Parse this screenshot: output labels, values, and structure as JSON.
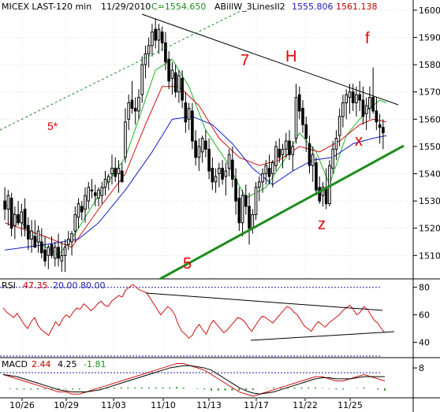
{
  "chart_data": [
    {
      "panel": "price",
      "type": "candlestick",
      "header": {
        "symbol": "MICEX LAST-120 min",
        "date": "11/29/2010",
        "close_label": "C=1554.650",
        "indicator_name": "ABillW_3LinesII2",
        "indicator_value_1": "1555.806",
        "indicator_value_2": "1561.138"
      },
      "ylim": [
        1502,
        1602
      ],
      "yticks": [
        "1600",
        "1590",
        "1580",
        "1570",
        "1560",
        "1550",
        "1540",
        "1530",
        "1520",
        "1510"
      ],
      "xticks": [
        "10/26",
        "10/29",
        "11/03",
        "11/10",
        "11/13",
        "11/17",
        "11/22",
        "11/25"
      ],
      "ohlc": [
        [
          1530,
          1535,
          1523,
          1527
        ],
        [
          1527,
          1534,
          1521,
          1532
        ],
        [
          1531,
          1533,
          1517,
          1520
        ],
        [
          1521,
          1528,
          1516,
          1525
        ],
        [
          1525,
          1530,
          1521,
          1522
        ],
        [
          1522,
          1529,
          1517,
          1526
        ],
        [
          1527,
          1531,
          1517,
          1520
        ],
        [
          1521,
          1524,
          1512,
          1516
        ],
        [
          1516,
          1523,
          1511,
          1519
        ],
        [
          1517,
          1523,
          1513,
          1513
        ],
        [
          1515,
          1521,
          1511,
          1519
        ],
        [
          1515,
          1520,
          1509,
          1511
        ],
        [
          1512,
          1517,
          1506,
          1508
        ],
        [
          1510,
          1514,
          1505,
          1513
        ],
        [
          1514,
          1517,
          1509,
          1510
        ],
        [
          1509,
          1515,
          1506,
          1513
        ],
        [
          1513,
          1518,
          1506,
          1509
        ],
        [
          1508,
          1515,
          1504,
          1510
        ],
        [
          1510,
          1516,
          1504,
          1513
        ],
        [
          1514,
          1519,
          1512,
          1516
        ],
        [
          1515,
          1519,
          1510,
          1518
        ],
        [
          1519,
          1528,
          1515,
          1525
        ],
        [
          1524,
          1531,
          1520,
          1529
        ],
        [
          1528,
          1530,
          1523,
          1526
        ],
        [
          1527,
          1535,
          1522,
          1532
        ],
        [
          1530,
          1537,
          1527,
          1535
        ],
        [
          1534,
          1538,
          1531,
          1534
        ],
        [
          1533,
          1536,
          1528,
          1532
        ],
        [
          1531,
          1535,
          1528,
          1534
        ],
        [
          1532,
          1537,
          1529,
          1535
        ],
        [
          1535,
          1541,
          1532,
          1538
        ],
        [
          1537,
          1540,
          1534,
          1539
        ],
        [
          1540,
          1547,
          1536,
          1542
        ],
        [
          1542,
          1546,
          1537,
          1539
        ],
        [
          1540,
          1545,
          1533,
          1542
        ],
        [
          1541,
          1544,
          1537,
          1537
        ],
        [
          1546,
          1564,
          1544,
          1559
        ],
        [
          1560,
          1569,
          1556,
          1566
        ],
        [
          1567,
          1574,
          1562,
          1564
        ],
        [
          1564,
          1568,
          1558,
          1563
        ],
        [
          1563,
          1571,
          1560,
          1568
        ],
        [
          1569,
          1583,
          1566,
          1580
        ],
        [
          1580,
          1587,
          1575,
          1584
        ],
        [
          1584,
          1590,
          1579,
          1587
        ],
        [
          1587,
          1595,
          1583,
          1592
        ],
        [
          1593,
          1597,
          1586,
          1589
        ],
        [
          1589,
          1595,
          1584,
          1593
        ],
        [
          1592,
          1594,
          1585,
          1588
        ],
        [
          1588,
          1592,
          1578,
          1581
        ],
        [
          1582,
          1585,
          1571,
          1574
        ],
        [
          1575,
          1581,
          1569,
          1578
        ],
        [
          1577,
          1580,
          1568,
          1570
        ],
        [
          1570,
          1578,
          1566,
          1576
        ],
        [
          1575,
          1578,
          1564,
          1567
        ],
        [
          1566,
          1570,
          1555,
          1559
        ],
        [
          1560,
          1566,
          1556,
          1564
        ],
        [
          1563,
          1566,
          1549,
          1552
        ],
        [
          1552,
          1556,
          1543,
          1546
        ],
        [
          1546,
          1553,
          1541,
          1550
        ],
        [
          1548,
          1554,
          1544,
          1553
        ],
        [
          1552,
          1556,
          1546,
          1549
        ],
        [
          1549,
          1553,
          1538,
          1541
        ],
        [
          1542,
          1546,
          1534,
          1537
        ],
        [
          1537,
          1542,
          1533,
          1539
        ],
        [
          1540,
          1544,
          1535,
          1542
        ],
        [
          1542,
          1545,
          1536,
          1538
        ],
        [
          1539,
          1544,
          1532,
          1541
        ],
        [
          1542,
          1549,
          1539,
          1547
        ],
        [
          1545,
          1550,
          1535,
          1538
        ],
        [
          1538,
          1542,
          1525,
          1530
        ],
        [
          1531,
          1535,
          1519,
          1522
        ],
        [
          1522,
          1534,
          1517,
          1532
        ],
        [
          1532,
          1536,
          1525,
          1528
        ],
        [
          1528,
          1533,
          1514,
          1520
        ],
        [
          1520,
          1527,
          1518,
          1525
        ],
        [
          1525,
          1537,
          1523,
          1535
        ],
        [
          1535,
          1539,
          1530,
          1537
        ],
        [
          1537,
          1542,
          1533,
          1540
        ],
        [
          1540,
          1545,
          1536,
          1543
        ],
        [
          1542,
          1547,
          1536,
          1539
        ],
        [
          1540,
          1545,
          1535,
          1544
        ],
        [
          1543,
          1552,
          1541,
          1550
        ],
        [
          1549,
          1553,
          1544,
          1546
        ],
        [
          1547,
          1551,
          1542,
          1549
        ],
        [
          1549,
          1555,
          1546,
          1552
        ],
        [
          1552,
          1556,
          1545,
          1547
        ],
        [
          1547,
          1552,
          1541,
          1550
        ],
        [
          1553,
          1573,
          1551,
          1568
        ],
        [
          1569,
          1572,
          1560,
          1563
        ],
        [
          1564,
          1567,
          1555,
          1558
        ],
        [
          1558,
          1561,
          1548,
          1553
        ],
        [
          1551,
          1554,
          1540,
          1543
        ],
        [
          1543,
          1550,
          1537,
          1547
        ],
        [
          1544,
          1546,
          1532,
          1534
        ],
        [
          1535,
          1539,
          1529,
          1530
        ],
        [
          1532,
          1537,
          1528,
          1535
        ],
        [
          1535,
          1542,
          1527,
          1529
        ],
        [
          1529,
          1545,
          1528,
          1543
        ],
        [
          1542,
          1552,
          1540,
          1549
        ],
        [
          1549,
          1556,
          1545,
          1553
        ],
        [
          1554,
          1564,
          1550,
          1561
        ],
        [
          1561,
          1569,
          1557,
          1566
        ],
        [
          1566,
          1571,
          1560,
          1569
        ],
        [
          1568,
          1573,
          1562,
          1570
        ],
        [
          1570,
          1573,
          1563,
          1566
        ],
        [
          1566,
          1572,
          1561,
          1569
        ],
        [
          1569,
          1574,
          1563,
          1567
        ],
        [
          1567,
          1572,
          1558,
          1561
        ],
        [
          1562,
          1568,
          1556,
          1565
        ],
        [
          1564,
          1572,
          1560,
          1568
        ],
        [
          1568,
          1579,
          1562,
          1563
        ],
        [
          1563,
          1568,
          1556,
          1559
        ],
        [
          1558,
          1562,
          1551,
          1557
        ],
        [
          1557,
          1560,
          1549,
          1555
        ]
      ],
      "lines": {
        "green": [
          [
            0,
            1529
          ],
          [
            10,
            1515
          ],
          [
            16,
            1510
          ],
          [
            21,
            1518
          ],
          [
            28,
            1532
          ],
          [
            36,
            1546
          ],
          [
            40,
            1560
          ],
          [
            45,
            1578
          ],
          [
            50,
            1582
          ],
          [
            55,
            1572
          ],
          [
            60,
            1556
          ],
          [
            66,
            1545
          ],
          [
            72,
            1531
          ],
          [
            78,
            1535
          ],
          [
            84,
            1546
          ],
          [
            88,
            1555
          ],
          [
            93,
            1548
          ],
          [
            97,
            1536
          ],
          [
            102,
            1554
          ],
          [
            108,
            1563
          ],
          [
            112,
            1567
          ],
          [
            114,
            1566
          ]
        ],
        "red": [
          [
            0,
            1522
          ],
          [
            12,
            1517
          ],
          [
            20,
            1513
          ],
          [
            28,
            1527
          ],
          [
            36,
            1540
          ],
          [
            42,
            1558
          ],
          [
            47,
            1572
          ],
          [
            52,
            1572
          ],
          [
            58,
            1565
          ],
          [
            64,
            1553
          ],
          [
            70,
            1546
          ],
          [
            76,
            1543
          ],
          [
            82,
            1545
          ],
          [
            88,
            1550
          ],
          [
            94,
            1548
          ],
          [
            100,
            1552
          ],
          [
            106,
            1558
          ],
          [
            110,
            1560
          ],
          [
            114,
            1559
          ]
        ],
        "blue": [
          [
            0,
            1512
          ],
          [
            12,
            1514
          ],
          [
            22,
            1516
          ],
          [
            28,
            1522
          ],
          [
            36,
            1534
          ],
          [
            44,
            1548
          ],
          [
            50,
            1560
          ],
          [
            56,
            1561
          ],
          [
            62,
            1558
          ],
          [
            68,
            1551
          ],
          [
            74,
            1542
          ],
          [
            80,
            1536
          ],
          [
            86,
            1541
          ],
          [
            92,
            1545
          ],
          [
            98,
            1546
          ],
          [
            104,
            1551
          ],
          [
            110,
            1553
          ],
          [
            114,
            1554
          ]
        ]
      },
      "annotations": [
        "7",
        "H",
        "f",
        "5*",
        "x",
        "z",
        "5"
      ]
    },
    {
      "panel": "rsi",
      "type": "line",
      "header": {
        "name": "RSI",
        "value": "47.35",
        "level_1": "20.00",
        "level_2": "80.00"
      },
      "ylim": [
        30,
        85
      ],
      "yticks": [
        "80",
        "60",
        "40"
      ],
      "levels": [
        80,
        20
      ],
      "values": [
        65,
        62,
        60,
        58,
        61,
        57,
        53,
        50,
        55,
        58,
        52,
        49,
        47,
        45,
        50,
        55,
        52,
        57,
        60,
        58,
        62,
        65,
        64,
        68,
        66,
        63,
        65,
        68,
        70,
        67,
        66,
        70,
        72,
        74,
        73,
        78,
        80,
        82,
        80,
        78,
        77,
        76,
        72,
        68,
        64,
        60,
        63,
        66,
        64,
        60,
        53,
        48,
        46,
        43,
        45,
        50,
        53,
        49,
        46,
        52,
        56,
        53,
        50,
        47,
        49,
        52,
        55,
        58,
        57,
        55,
        51,
        48,
        52,
        56,
        59,
        58,
        56,
        54,
        57,
        60,
        63,
        66,
        65,
        62,
        60,
        56,
        52,
        50,
        48,
        52,
        55,
        53,
        51,
        54,
        56,
        58,
        60,
        63,
        65,
        67,
        64,
        60,
        62,
        66,
        64,
        60,
        56,
        54,
        50,
        47
      ]
    },
    {
      "panel": "macd",
      "type": "line",
      "header": {
        "name": "MACD",
        "value_1": "2.44",
        "value_2": "4.25",
        "value_3": "-1.81"
      },
      "ylim": [
        -5,
        12
      ],
      "yticks": [
        "8"
      ],
      "macd": [
        5,
        4,
        3,
        2,
        1,
        0,
        -1,
        -2,
        -3,
        -3,
        -4,
        -4,
        -3,
        -2,
        -1,
        0,
        1,
        2,
        3,
        4,
        5,
        6,
        7,
        8,
        9,
        10,
        10,
        9,
        8,
        7,
        5,
        3,
        1,
        -1,
        -3,
        -4,
        -5,
        -4,
        -3,
        -2,
        -1,
        0,
        1,
        2,
        3,
        4,
        4,
        3,
        2,
        2,
        3,
        4,
        5,
        4,
        3,
        2
      ],
      "signal": [
        5,
        4.5,
        4,
        3,
        2,
        1,
        0,
        -1,
        -2,
        -2.5,
        -3,
        -3,
        -3,
        -2.5,
        -2,
        -1,
        0,
        1,
        2,
        3,
        4,
        5,
        6,
        7,
        8,
        8.5,
        9,
        9,
        8.5,
        8,
        7,
        5,
        3,
        1,
        -1,
        -2.5,
        -3.5,
        -4,
        -3.5,
        -3,
        -2,
        -1,
        0,
        1,
        2,
        3,
        3.5,
        3.5,
        3,
        3,
        3,
        3.5,
        4,
        4,
        4,
        4
      ]
    }
  ]
}
